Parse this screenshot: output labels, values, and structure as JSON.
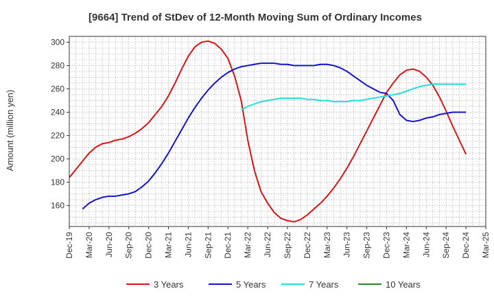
{
  "chart_data": {
    "type": "line",
    "title": "[9664]  Trend of StDev of 12-Month Moving Sum of Ordinary Incomes",
    "xlabel": "",
    "ylabel": "Amount (million yen)",
    "ylim": [
      142,
      305
    ],
    "yticks": [
      160,
      180,
      200,
      220,
      240,
      260,
      280,
      300
    ],
    "xlim": [
      "2019-12",
      "2025-03"
    ],
    "xtick_labels": [
      "Dec-19",
      "Mar-20",
      "Jun-20",
      "Sep-20",
      "Dec-20",
      "Mar-21",
      "Jun-21",
      "Sep-21",
      "Dec-21",
      "Mar-22",
      "Jun-22",
      "Sep-22",
      "Dec-22",
      "Mar-23",
      "Jun-23",
      "Sep-23",
      "Dec-23",
      "Mar-24",
      "Jun-24",
      "Sep-24",
      "Dec-24",
      "Mar-25"
    ],
    "grid": true,
    "legend_position": "bottom",
    "series": [
      {
        "name": "3 Years",
        "color": "#dd1111",
        "x": [
          "2019-12",
          "2020-01",
          "2020-02",
          "2020-03",
          "2020-04",
          "2020-05",
          "2020-06",
          "2020-07",
          "2020-08",
          "2020-09",
          "2020-10",
          "2020-11",
          "2020-12",
          "2021-01",
          "2021-02",
          "2021-03",
          "2021-04",
          "2021-05",
          "2021-06",
          "2021-07",
          "2021-08",
          "2021-09",
          "2021-10",
          "2021-11",
          "2021-12",
          "2022-01",
          "2022-02",
          "2022-03",
          "2022-04",
          "2022-05",
          "2022-06",
          "2022-07",
          "2022-08",
          "2022-09",
          "2022-10",
          "2022-11",
          "2022-12",
          "2023-01",
          "2023-02",
          "2023-03",
          "2023-04",
          "2023-05",
          "2023-06",
          "2023-07",
          "2023-08",
          "2023-09",
          "2023-10",
          "2023-11",
          "2023-12",
          "2024-01",
          "2024-02",
          "2024-03",
          "2024-04",
          "2024-05",
          "2024-06",
          "2024-07",
          "2024-08",
          "2024-09",
          "2024-10",
          "2024-11",
          "2024-12"
        ],
        "values": [
          184,
          191,
          198,
          205,
          210,
          213,
          214,
          216,
          217,
          219,
          222,
          226,
          231,
          238,
          245,
          254,
          265,
          277,
          288,
          296,
          300,
          301,
          299,
          294,
          286,
          271,
          250,
          216,
          190,
          172,
          162,
          154,
          149,
          147,
          146,
          148,
          152,
          157,
          162,
          168,
          175,
          183,
          192,
          202,
          213,
          224,
          235,
          246,
          257,
          265,
          272,
          276,
          277,
          275,
          270,
          263,
          253,
          241,
          228,
          216,
          204
        ]
      },
      {
        "name": "5 Years",
        "color": "#1111cc",
        "x": [
          "2020-02",
          "2020-03",
          "2020-04",
          "2020-05",
          "2020-06",
          "2020-07",
          "2020-08",
          "2020-09",
          "2020-10",
          "2020-11",
          "2020-12",
          "2021-01",
          "2021-02",
          "2021-03",
          "2021-04",
          "2021-05",
          "2021-06",
          "2021-07",
          "2021-08",
          "2021-09",
          "2021-10",
          "2021-11",
          "2021-12",
          "2022-01",
          "2022-02",
          "2022-03",
          "2022-04",
          "2022-05",
          "2022-06",
          "2022-07",
          "2022-08",
          "2022-09",
          "2022-10",
          "2022-11",
          "2022-12",
          "2023-01",
          "2023-02",
          "2023-03",
          "2023-04",
          "2023-05",
          "2023-06",
          "2023-07",
          "2023-08",
          "2023-09",
          "2023-10",
          "2023-11",
          "2023-12",
          "2024-01",
          "2024-02",
          "2024-03",
          "2024-04",
          "2024-05",
          "2024-06",
          "2024-07",
          "2024-08",
          "2024-09",
          "2024-10",
          "2024-11",
          "2024-12"
        ],
        "values": [
          157,
          162,
          165,
          167,
          168,
          168,
          169,
          170,
          172,
          176,
          181,
          188,
          196,
          205,
          215,
          225,
          235,
          244,
          252,
          259,
          265,
          270,
          274,
          277,
          279,
          280,
          281,
          282,
          282,
          282,
          281,
          281,
          280,
          280,
          280,
          280,
          281,
          281,
          280,
          278,
          275,
          271,
          267,
          263,
          260,
          257,
          256,
          250,
          238,
          233,
          232,
          233,
          235,
          236,
          238,
          239,
          240,
          240,
          240
        ]
      },
      {
        "name": "7 Years",
        "color": "#22dddd",
        "x": [
          "2022-02",
          "2022-03",
          "2022-04",
          "2022-05",
          "2022-06",
          "2022-07",
          "2022-08",
          "2022-09",
          "2022-10",
          "2022-11",
          "2022-12",
          "2023-01",
          "2023-02",
          "2023-03",
          "2023-04",
          "2023-05",
          "2023-06",
          "2023-07",
          "2023-08",
          "2023-09",
          "2023-10",
          "2023-11",
          "2023-12",
          "2024-01",
          "2024-02",
          "2024-03",
          "2024-04",
          "2024-05",
          "2024-06",
          "2024-07",
          "2024-08",
          "2024-09",
          "2024-10",
          "2024-11",
          "2024-12"
        ],
        "values": [
          242,
          245,
          247,
          249,
          250,
          251,
          252,
          252,
          252,
          252,
          251,
          251,
          250,
          250,
          249,
          249,
          249,
          250,
          250,
          251,
          252,
          253,
          254,
          255,
          256,
          258,
          260,
          262,
          263,
          264,
          264,
          264,
          264,
          264,
          264
        ]
      },
      {
        "name": "10 Years",
        "color": "#228822",
        "x": [],
        "values": []
      }
    ]
  }
}
